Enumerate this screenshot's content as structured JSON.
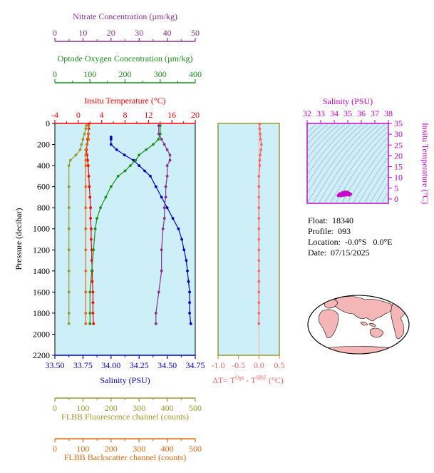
{
  "colors": {
    "nitrate": "#8b2f8b",
    "oxygen": "#1a8f1a",
    "temperature": "#ff0000",
    "salinity": "#0000cc",
    "fluorescence": "#9a9a30",
    "backscatter": "#e06a10",
    "deltaT": "#ff6060",
    "panel_bg": "#cdeff7",
    "magenta": "#cc00cc",
    "land": "#f4b6b6"
  },
  "info": {
    "float_label": "Float:",
    "float": "18340",
    "profile_label": "Profile:",
    "profile": "093",
    "location_label": "Location:",
    "location": "-0.0°S   0.0°E",
    "date_label": "Date:",
    "date": "07/15/2025"
  },
  "chart_data": [
    {
      "type": "line",
      "id": "main-profile",
      "ylabel": "Pressure (decibar)",
      "ylim": [
        2200,
        0
      ],
      "yticks": [
        0,
        200,
        400,
        600,
        800,
        1000,
        1200,
        1400,
        1600,
        1800,
        2000,
        2200
      ],
      "axes": {
        "salinity": {
          "label": "Salinity (PSU)",
          "range": [
            33.5,
            34.75
          ],
          "ticks": [
            "33.50",
            "33.75",
            "34.00",
            "34.25",
            "34.50",
            "34.75"
          ],
          "position": "bottom"
        },
        "temperature": {
          "label": "Insitu Temperature (°C)",
          "range": [
            -4,
            20
          ],
          "ticks": [
            "-4",
            "0",
            "4",
            "8",
            "12",
            "16",
            "20"
          ],
          "position": "top"
        },
        "oxygen": {
          "label": "Optode Oxygen Concentration (µm/kg)",
          "range": [
            0,
            400
          ],
          "ticks": [
            "0",
            "100",
            "200",
            "300",
            "400"
          ],
          "position": "top"
        },
        "nitrate": {
          "label": "Nitrate Concentration (µm/kg)",
          "range": [
            0,
            50
          ],
          "ticks": [
            "0",
            "10",
            "20",
            "30",
            "40",
            "50"
          ],
          "position": "top"
        },
        "fluorescence": {
          "label": "FLBB Fluorescence channel (counts)",
          "range": [
            0,
            500
          ],
          "ticks": [
            "0",
            "100",
            "200",
            "300",
            "400",
            "500"
          ],
          "position": "bottom"
        },
        "backscatter": {
          "label": "FLBB Backscatter channel (counts)",
          "range": [
            0,
            500
          ],
          "ticks": [
            "0",
            "100",
            "200",
            "300",
            "400",
            "500"
          ],
          "position": "bottom"
        }
      },
      "series": [
        {
          "key": "temperature",
          "axis": "temperature",
          "points": [
            [
              1.8,
              5
            ],
            [
              1.8,
              50
            ],
            [
              1.7,
              100
            ],
            [
              1.6,
              150
            ],
            [
              1.5,
              200
            ],
            [
              1.4,
              250
            ],
            [
              1.5,
              300
            ],
            [
              1.6,
              350
            ],
            [
              1.7,
              400
            ],
            [
              1.8,
              500
            ],
            [
              1.9,
              600
            ],
            [
              2.0,
              700
            ],
            [
              2.1,
              800
            ],
            [
              2.1,
              900
            ],
            [
              2.2,
              1000
            ],
            [
              2.2,
              1100
            ],
            [
              2.3,
              1200
            ],
            [
              2.3,
              1300
            ],
            [
              2.4,
              1400
            ],
            [
              2.4,
              1500
            ],
            [
              2.5,
              1600
            ],
            [
              2.5,
              1700
            ],
            [
              2.5,
              1800
            ],
            [
              2.6,
              1900
            ]
          ]
        },
        {
          "key": "salinity",
          "axis": "salinity",
          "points": [
            [
              34.0,
              130
            ],
            [
              34.0,
              150
            ],
            [
              34.0,
              200
            ],
            [
              34.05,
              250
            ],
            [
              34.12,
              300
            ],
            [
              34.2,
              350
            ],
            [
              34.25,
              400
            ],
            [
              34.3,
              450
            ],
            [
              34.35,
              500
            ],
            [
              34.4,
              600
            ],
            [
              34.45,
              700
            ],
            [
              34.5,
              800
            ],
            [
              34.55,
              900
            ],
            [
              34.6,
              1000
            ],
            [
              34.63,
              1100
            ],
            [
              34.65,
              1200
            ],
            [
              34.67,
              1300
            ],
            [
              34.68,
              1400
            ],
            [
              34.69,
              1500
            ],
            [
              34.7,
              1600
            ],
            [
              34.7,
              1700
            ],
            [
              34.7,
              1800
            ],
            [
              34.71,
              1900
            ]
          ]
        },
        {
          "key": "oxygen",
          "axis": "oxygen",
          "points": [
            [
              300,
              20
            ],
            [
              300,
              100
            ],
            [
              295,
              150
            ],
            [
              280,
              200
            ],
            [
              260,
              250
            ],
            [
              240,
              300
            ],
            [
              230,
              350
            ],
            [
              215,
              400
            ],
            [
              200,
              450
            ],
            [
              180,
              500
            ],
            [
              160,
              600
            ],
            [
              145,
              700
            ],
            [
              130,
              800
            ],
            [
              120,
              900
            ],
            [
              115,
              1000
            ],
            [
              110,
              1200
            ],
            [
              105,
              1400
            ],
            [
              100,
              1600
            ],
            [
              100,
              1800
            ],
            [
              100,
              1900
            ]
          ]
        },
        {
          "key": "nitrate",
          "axis": "nitrate",
          "points": [
            [
              37,
              20
            ],
            [
              37,
              100
            ],
            [
              38,
              150
            ],
            [
              39,
              200
            ],
            [
              40,
              250
            ],
            [
              41,
              300
            ],
            [
              41,
              350
            ],
            [
              40,
              400
            ],
            [
              40,
              500
            ],
            [
              39.5,
              600
            ],
            [
              39.5,
              700
            ],
            [
              39,
              800
            ],
            [
              39,
              900
            ],
            [
              38.5,
              1000
            ],
            [
              38,
              1200
            ],
            [
              38,
              1400
            ],
            [
              37,
              1600
            ],
            [
              36,
              1800
            ],
            [
              36,
              1900
            ]
          ]
        },
        {
          "key": "fluorescence",
          "axis": "fluorescence",
          "points": [
            [
              112,
              20
            ],
            [
              110,
              50
            ],
            [
              105,
              100
            ],
            [
              100,
              150
            ],
            [
              95,
              200
            ],
            [
              90,
              250
            ],
            [
              75,
              300
            ],
            [
              55,
              350
            ],
            [
              50,
              400
            ],
            [
              50,
              600
            ],
            [
              50,
              800
            ],
            [
              50,
              1000
            ],
            [
              50,
              1200
            ],
            [
              50,
              1400
            ],
            [
              50,
              1600
            ],
            [
              50,
              1800
            ],
            [
              50,
              1900
            ]
          ]
        },
        {
          "key": "backscatter",
          "axis": "backscatter",
          "points": [
            [
              120,
              20
            ],
            [
              120,
              100
            ],
            [
              120,
              150
            ],
            [
              115,
              200
            ],
            [
              110,
              250
            ],
            [
              110,
              300
            ],
            [
              110,
              350
            ],
            [
              110,
              400
            ],
            [
              110,
              600
            ],
            [
              110,
              800
            ],
            [
              110,
              1000
            ],
            [
              110,
              1200
            ],
            [
              110,
              1400
            ],
            [
              110,
              1600
            ],
            [
              110,
              1800
            ],
            [
              110,
              1900
            ]
          ]
        }
      ]
    },
    {
      "type": "line",
      "id": "delta-t",
      "xlabel": "ΔT= T",
      "xlabel_sup1": "Opt",
      "xlabel_mid": " - T",
      "xlabel_sup2": "SBE",
      "xlabel_unit": " (°C)",
      "xlim": [
        -1.0,
        0.5
      ],
      "xticks": [
        "-1.0",
        "-0.5",
        "0.0",
        "0.5"
      ],
      "ylim": [
        2200,
        0
      ],
      "points": [
        [
          0.02,
          5
        ],
        [
          0.02,
          50
        ],
        [
          0.03,
          100
        ],
        [
          0.04,
          150
        ],
        [
          0.06,
          200
        ],
        [
          0.05,
          250
        ],
        [
          0.03,
          300
        ],
        [
          0.02,
          350
        ],
        [
          0.02,
          400
        ],
        [
          0.0,
          500
        ],
        [
          0.0,
          600
        ],
        [
          0.0,
          700
        ],
        [
          0.0,
          800
        ],
        [
          0.0,
          900
        ],
        [
          0.0,
          1000
        ],
        [
          0.0,
          1100
        ],
        [
          0.0,
          1200
        ],
        [
          0.0,
          1300
        ],
        [
          0.0,
          1400
        ],
        [
          0.0,
          1500
        ],
        [
          0.0,
          1600
        ],
        [
          0.0,
          1700
        ],
        [
          0.0,
          1800
        ],
        [
          0.0,
          1900
        ]
      ]
    },
    {
      "type": "scatter",
      "id": "ts-diagram",
      "xlabel": "Salinity (PSU)",
      "ylabel": "Insitu Temperature (°C)",
      "xlim": [
        32,
        38
      ],
      "ylim": [
        -2,
        35
      ],
      "xticks": [
        "32",
        "33",
        "34",
        "35",
        "36",
        "37",
        "38"
      ],
      "yticks": [
        "0",
        "5",
        "10",
        "15",
        "20",
        "25",
        "30",
        "35"
      ],
      "points": [
        [
          34.3,
          1.6
        ],
        [
          34.4,
          1.8
        ],
        [
          34.5,
          2.0
        ],
        [
          34.6,
          2.2
        ],
        [
          34.7,
          2.5
        ],
        [
          34.8,
          2.8
        ],
        [
          34.9,
          3.0
        ],
        [
          35.0,
          2.8
        ],
        [
          35.1,
          2.6
        ],
        [
          35.2,
          2.3
        ],
        [
          34.4,
          2.4
        ],
        [
          34.6,
          3.0
        ],
        [
          34.8,
          3.3
        ],
        [
          35.0,
          3.1
        ],
        [
          34.5,
          1.5
        ],
        [
          34.7,
          1.7
        ],
        [
          34.9,
          1.9
        ],
        [
          35.1,
          1.8
        ]
      ]
    }
  ]
}
